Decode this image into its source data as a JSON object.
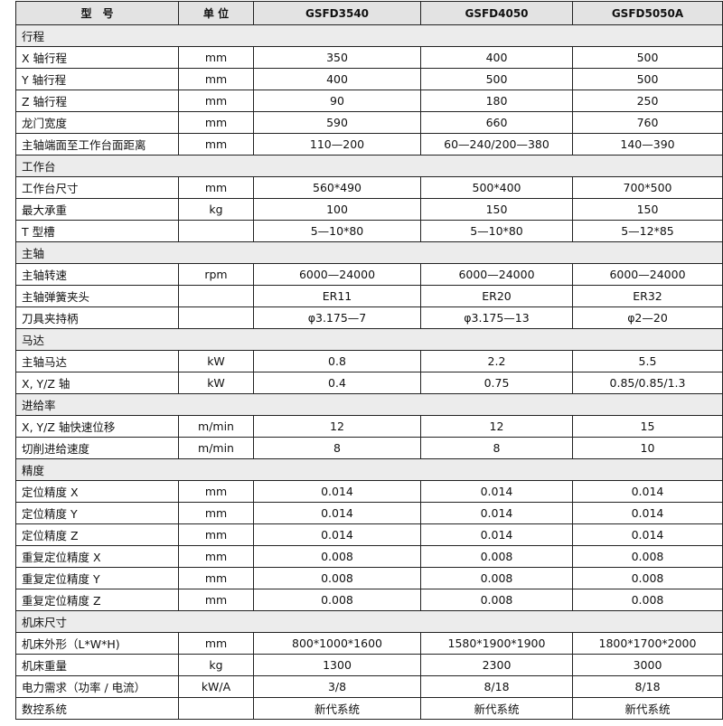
{
  "header": {
    "model": "型　号",
    "unit": "单 位",
    "models": [
      "GSFD3540",
      "GSFD4050",
      "GSFD5050A"
    ]
  },
  "sections": [
    {
      "title": "行程",
      "rows": [
        {
          "label": "X 轴行程",
          "unit": "mm",
          "values": [
            "350",
            "400",
            "500"
          ]
        },
        {
          "label": "Y 轴行程",
          "unit": "mm",
          "values": [
            "400",
            "500",
            "500"
          ]
        },
        {
          "label": "Z 轴行程",
          "unit": "mm",
          "values": [
            "90",
            "180",
            "250"
          ]
        },
        {
          "label": "龙门宽度",
          "unit": "mm",
          "values": [
            "590",
            "660",
            "760"
          ]
        },
        {
          "label": "主轴端面至工作台面距离",
          "unit": "mm",
          "values": [
            "110—200",
            "60—240/200—380",
            "140—390"
          ]
        }
      ]
    },
    {
      "title": "工作台",
      "rows": [
        {
          "label": "工作台尺寸",
          "unit": "mm",
          "values": [
            "560*490",
            "500*400",
            "700*500"
          ]
        },
        {
          "label": "最大承重",
          "unit": "kg",
          "values": [
            "100",
            "150",
            "150"
          ]
        },
        {
          "label": "T 型槽",
          "unit": "",
          "values": [
            "5—10*80",
            "5—10*80",
            "5—12*85"
          ]
        }
      ]
    },
    {
      "title": "主轴",
      "rows": [
        {
          "label": "主轴转速",
          "unit": "rpm",
          "values": [
            "6000—24000",
            "6000—24000",
            "6000—24000"
          ]
        },
        {
          "label": "主轴弹簧夹头",
          "unit": "",
          "values": [
            "ER11",
            "ER20",
            "ER32"
          ]
        },
        {
          "label": "刀具夹持柄",
          "unit": "",
          "values": [
            "φ3.175—7",
            "φ3.175—13",
            "φ2—20"
          ]
        }
      ]
    },
    {
      "title": "马达",
      "rows": [
        {
          "label": "主轴马达",
          "unit": "kW",
          "values": [
            "0.8",
            "2.2",
            "5.5"
          ]
        },
        {
          "label": "X, Y/Z 轴",
          "unit": "kW",
          "values": [
            "0.4",
            "0.75",
            "0.85/0.85/1.3"
          ]
        }
      ]
    },
    {
      "title": "进给率",
      "rows": [
        {
          "label": "X, Y/Z 轴快速位移",
          "unit": "m/min",
          "values": [
            "12",
            "12",
            "15"
          ]
        },
        {
          "label": "切削进给速度",
          "unit": "m/min",
          "values": [
            "8",
            "8",
            "10"
          ]
        }
      ]
    },
    {
      "title": "精度",
      "rows": [
        {
          "label": "定位精度 X",
          "unit": "mm",
          "values": [
            "0.014",
            "0.014",
            "0.014"
          ]
        },
        {
          "label": "定位精度 Y",
          "unit": "mm",
          "values": [
            "0.014",
            "0.014",
            "0.014"
          ]
        },
        {
          "label": "定位精度 Z",
          "unit": "mm",
          "values": [
            "0.014",
            "0.014",
            "0.014"
          ]
        },
        {
          "label": "重复定位精度 X",
          "unit": "mm",
          "values": [
            "0.008",
            "0.008",
            "0.008"
          ]
        },
        {
          "label": "重复定位精度 Y",
          "unit": "mm",
          "values": [
            "0.008",
            "0.008",
            "0.008"
          ]
        },
        {
          "label": "重复定位精度 Z",
          "unit": "mm",
          "values": [
            "0.008",
            "0.008",
            "0.008"
          ]
        }
      ]
    },
    {
      "title": "机床尺寸",
      "rows": [
        {
          "label": "机床外形（L*W*H)",
          "unit": "mm",
          "values": [
            "800*1000*1600",
            "1580*1900*1900",
            "1800*1700*2000"
          ]
        },
        {
          "label": "机床重量",
          "unit": "kg",
          "values": [
            "1300",
            "2300",
            "3000"
          ]
        },
        {
          "label": "电力需求（功率 / 电流）",
          "unit": "kW/A",
          "values": [
            "3/8",
            "8/18",
            "8/18"
          ]
        },
        {
          "label": "数控系统",
          "unit": "",
          "values": [
            "新代系统",
            "新代系统",
            "新代系统"
          ]
        }
      ]
    }
  ]
}
